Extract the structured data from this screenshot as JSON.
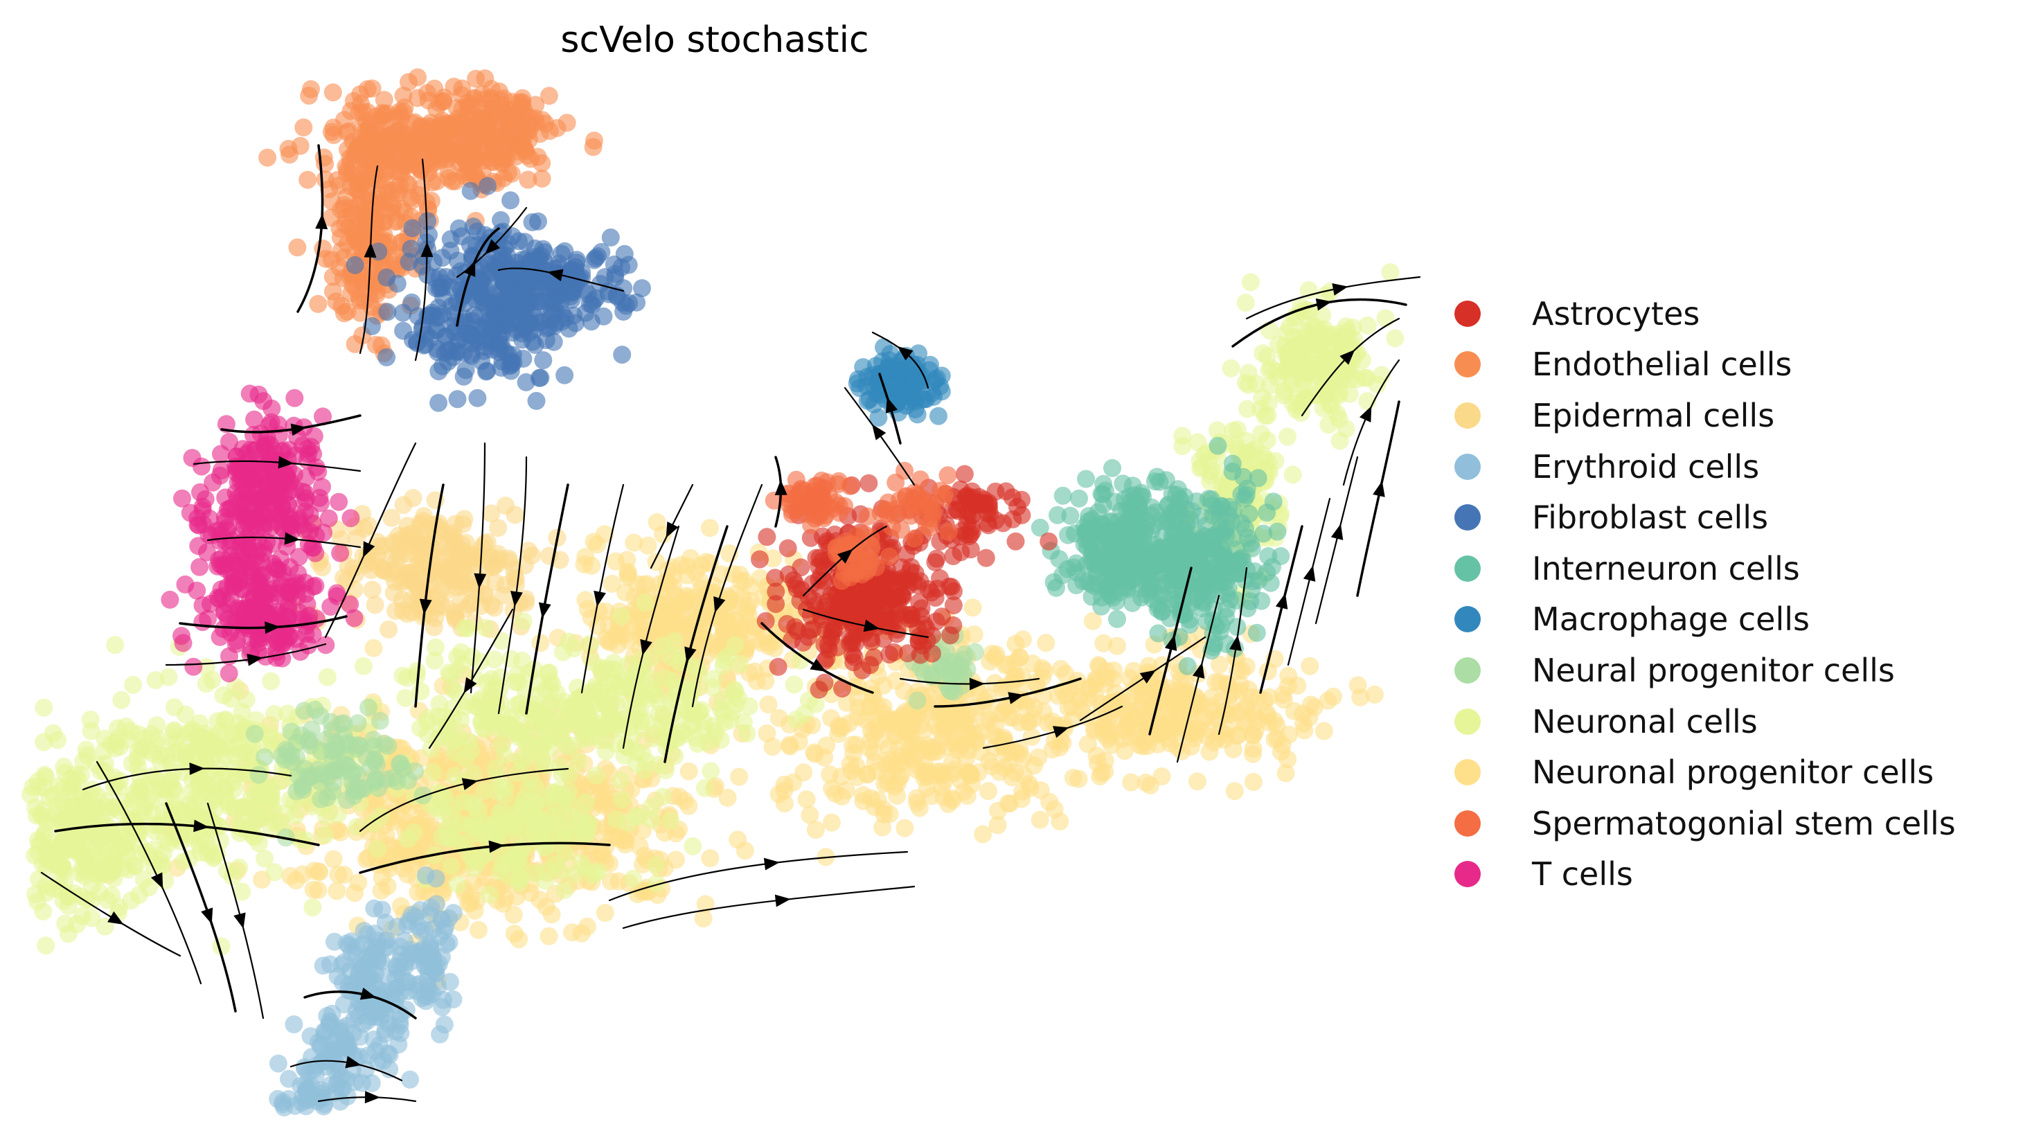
{
  "chart_data": {
    "type": "scatter",
    "title": "scVelo stochastic",
    "xlabel": "",
    "ylabel": "",
    "axes_visible": false,
    "grid": false,
    "legend_position": "right",
    "overlay": "velocity streamlines with arrowheads",
    "series": [
      {
        "name": "Astrocytes",
        "color": "#d73027"
      },
      {
        "name": "Endothelial cells",
        "color": "#f88d52"
      },
      {
        "name": "Epidermal cells",
        "color": "#fbd98a"
      },
      {
        "name": "Erythroid cells",
        "color": "#91bfdb"
      },
      {
        "name": "Fibroblast cells",
        "color": "#4575b4"
      },
      {
        "name": "Interneuron cells",
        "color": "#66c2a5"
      },
      {
        "name": "Macrophage cells",
        "color": "#3288bd"
      },
      {
        "name": "Neural progenitor cells",
        "color": "#abdda4"
      },
      {
        "name": "Neuronal cells",
        "color": "#e6f598"
      },
      {
        "name": "Neuronal progenitor cells",
        "color": "#fee08b"
      },
      {
        "name": "Spermatogonial stem cells",
        "color": "#f46d43"
      },
      {
        "name": "T cells",
        "color": "#e7298a"
      }
    ]
  }
}
